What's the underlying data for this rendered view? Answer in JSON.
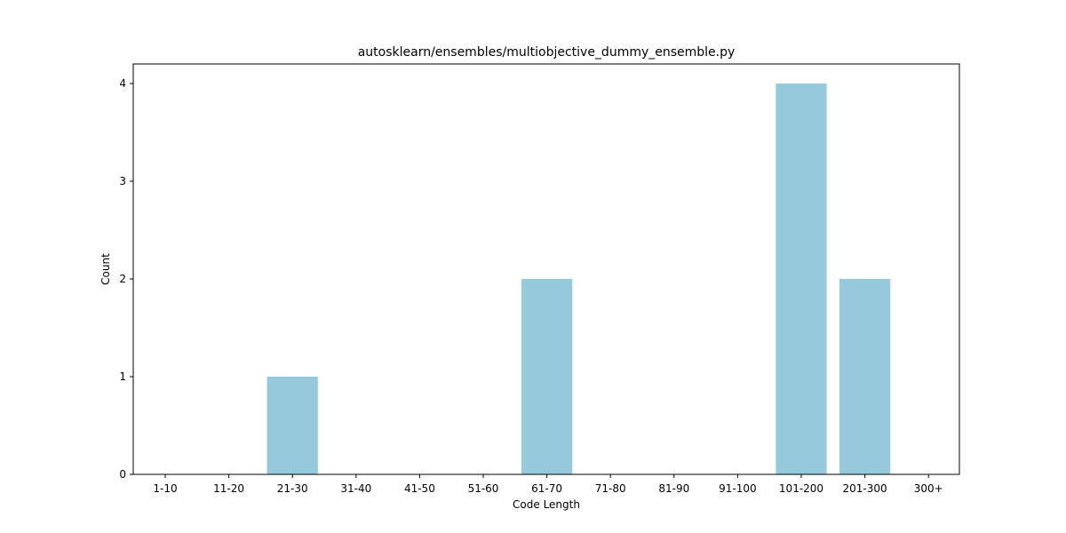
{
  "chart_data": {
    "type": "bar",
    "title": "autosklearn/ensembles/multiobjective_dummy_ensemble.py",
    "xlabel": "Code Length",
    "ylabel": "Count",
    "categories": [
      "1-10",
      "11-20",
      "21-30",
      "31-40",
      "41-50",
      "51-60",
      "61-70",
      "71-80",
      "81-90",
      "91-100",
      "101-200",
      "201-300",
      "300+"
    ],
    "values": [
      0,
      0,
      1,
      0,
      0,
      0,
      2,
      0,
      0,
      0,
      4,
      2,
      0
    ],
    "ylim": [
      0,
      4.2
    ],
    "yticks": [
      0,
      1,
      2,
      3,
      4
    ],
    "grid": false,
    "colors": {
      "bar": "#96c9dc",
      "axis": "#000000",
      "background": "#ffffff"
    }
  }
}
